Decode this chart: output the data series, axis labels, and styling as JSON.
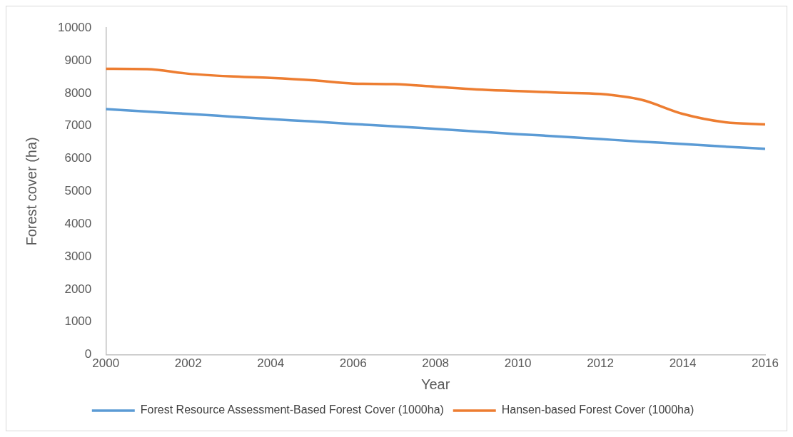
{
  "chart_data": {
    "type": "line",
    "xlabel": "Year",
    "ylabel": "Forest cover (ha)",
    "x": [
      2000,
      2001,
      2002,
      2003,
      2004,
      2005,
      2006,
      2007,
      2008,
      2009,
      2010,
      2011,
      2012,
      2013,
      2014,
      2015,
      2016
    ],
    "series": [
      {
        "name": "Forest Resource Assessment-Based Forest Cover (1000ha)",
        "color": "#5b9bd5",
        "values": [
          7520,
          7440,
          7370,
          7290,
          7210,
          7140,
          7060,
          6990,
          6910,
          6830,
          6750,
          6680,
          6600,
          6520,
          6450,
          6370,
          6300
        ]
      },
      {
        "name": "Hansen-based Forest Cover (1000ha)",
        "color": "#ed7d31",
        "values": [
          8750,
          8740,
          8600,
          8520,
          8470,
          8400,
          8300,
          8280,
          8200,
          8120,
          8070,
          8020,
          7980,
          7800,
          7370,
          7120,
          7050
        ]
      }
    ],
    "xlim": [
      2000,
      2016
    ],
    "xticks": [
      2000,
      2002,
      2004,
      2006,
      2008,
      2010,
      2012,
      2014,
      2016
    ],
    "ylim": [
      0,
      10000
    ],
    "yticks": [
      0,
      1000,
      2000,
      3000,
      4000,
      5000,
      6000,
      7000,
      8000,
      9000,
      10000
    ],
    "grid": false,
    "legend": "bottom",
    "marker": "none",
    "line_style": "solid"
  }
}
